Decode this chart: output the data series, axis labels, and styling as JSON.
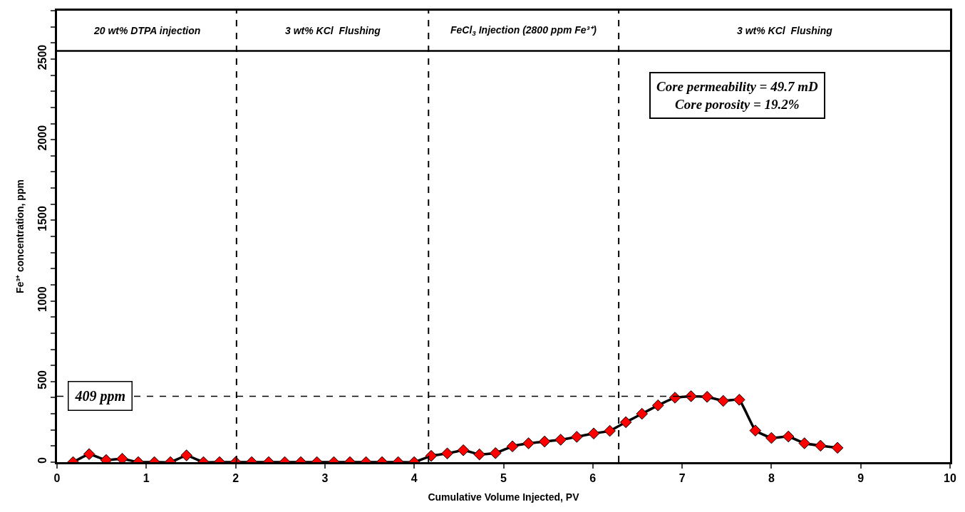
{
  "chart_data": {
    "type": "line",
    "xlabel": "Cumulative Volume Injected, PV",
    "ylabel": "Fe³⁺ concentration, ppm",
    "x": [
      0.18,
      0.36,
      0.55,
      0.73,
      0.91,
      1.09,
      1.27,
      1.45,
      1.64,
      1.82,
      2.0,
      2.18,
      2.37,
      2.55,
      2.73,
      2.91,
      3.1,
      3.28,
      3.46,
      3.64,
      3.82,
      4.0,
      4.19,
      4.37,
      4.55,
      4.73,
      4.91,
      5.1,
      5.28,
      5.46,
      5.64,
      5.82,
      6.01,
      6.19,
      6.37,
      6.55,
      6.73,
      6.92,
      7.1,
      7.28,
      7.46,
      7.64,
      7.82,
      8.0,
      8.19,
      8.37,
      8.55,
      8.74
    ],
    "series": [
      {
        "color": "#ff0000",
        "values": [
          0,
          50,
          13,
          21,
          0,
          0,
          0,
          42,
          0,
          0,
          0,
          0,
          0,
          0,
          0,
          0,
          0,
          0,
          0,
          0,
          0,
          0,
          39,
          54,
          74,
          48,
          56,
          98,
          117,
          128,
          139,
          157,
          178,
          194,
          248,
          300,
          352,
          400,
          409,
          405,
          380,
          387,
          196,
          150,
          159,
          117,
          102,
          89
        ]
      }
    ],
    "marker": "diamond",
    "line_style": "solid",
    "xlim": [
      0,
      10
    ],
    "xticks": [
      0,
      1,
      2,
      3,
      4,
      5,
      6,
      7,
      8,
      9,
      10
    ],
    "ylim": [
      0,
      2800
    ],
    "yticks": [
      0,
      {
        "value": 100,
        "label": null
      },
      {
        "value": 200,
        "label": null
      },
      {
        "value": 300,
        "label": null
      },
      {
        "value": 400,
        "label": null
      },
      500,
      {
        "value": 600,
        "label": null
      },
      {
        "value": 700,
        "label": null
      },
      {
        "value": 800,
        "label": null
      },
      {
        "value": 900,
        "label": null
      },
      1000,
      {
        "value": 1100,
        "label": null
      },
      {
        "value": 1200,
        "label": null
      },
      {
        "value": 1300,
        "label": null
      },
      {
        "value": 1400,
        "label": null
      },
      1500,
      {
        "value": 1600,
        "label": null
      },
      {
        "value": 1700,
        "label": null
      },
      {
        "value": 1800,
        "label": null
      },
      {
        "value": 1900,
        "label": null
      },
      2000,
      {
        "value": 2100,
        "label": null
      },
      {
        "value": 2200,
        "label": null
      },
      {
        "value": 2300,
        "label": null
      },
      {
        "value": 2400,
        "label": null
      },
      2500,
      {
        "value": 2600,
        "label": null
      },
      {
        "value": 2700,
        "label": null
      },
      {
        "value": 2800,
        "label": null
      }
    ],
    "legend": false,
    "ref_lines": [
      {
        "axis": "x",
        "value": 2.01,
        "line_style": "dashed"
      },
      {
        "axis": "x",
        "value": 4.16,
        "line_style": "dashed"
      },
      {
        "axis": "x",
        "value": 6.29,
        "line_style": "dashed"
      },
      {
        "axis": "y",
        "value": 2550,
        "line_style": "solid"
      },
      {
        "axis": "y",
        "value": 409,
        "label": "409 ppm",
        "line_style": "dashed"
      }
    ],
    "annotations": [
      "20 wt% DTPA injection",
      "3 wt% KCl  Flushing",
      "FeCl$_{3}$ Injection (2800 ppm Fe³⁺)",
      "3 wt% KCl  Flushing",
      "Core permeability = 49.7 mD\nCore porosity = 19.2%"
    ]
  }
}
